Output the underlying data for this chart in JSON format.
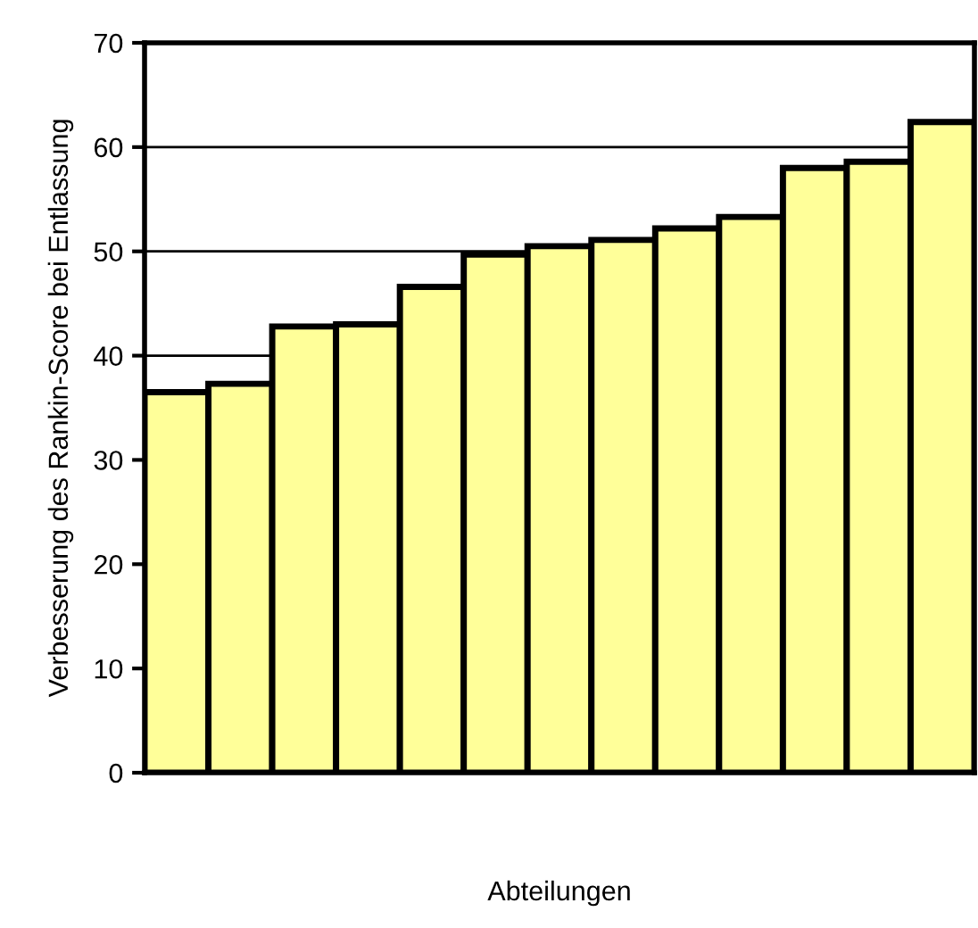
{
  "chart_data": {
    "type": "bar",
    "xlabel": "Abteilungen",
    "ylabel": "Verbesserung des Rankin-Score bei Entlassung",
    "categories": [
      null,
      null,
      null,
      null,
      null,
      null,
      null,
      null,
      null,
      null,
      null,
      null,
      null
    ],
    "values": [
      36.5,
      37.3,
      42.8,
      43.0,
      46.6,
      49.7,
      50.5,
      51.1,
      52.2,
      53.3,
      58.0,
      58.6,
      62.4
    ],
    "color": "#ffff99",
    "ylim": [
      0,
      70
    ],
    "yticks": [
      0,
      10,
      20,
      30,
      40,
      50,
      60,
      70
    ],
    "grid": "y"
  }
}
